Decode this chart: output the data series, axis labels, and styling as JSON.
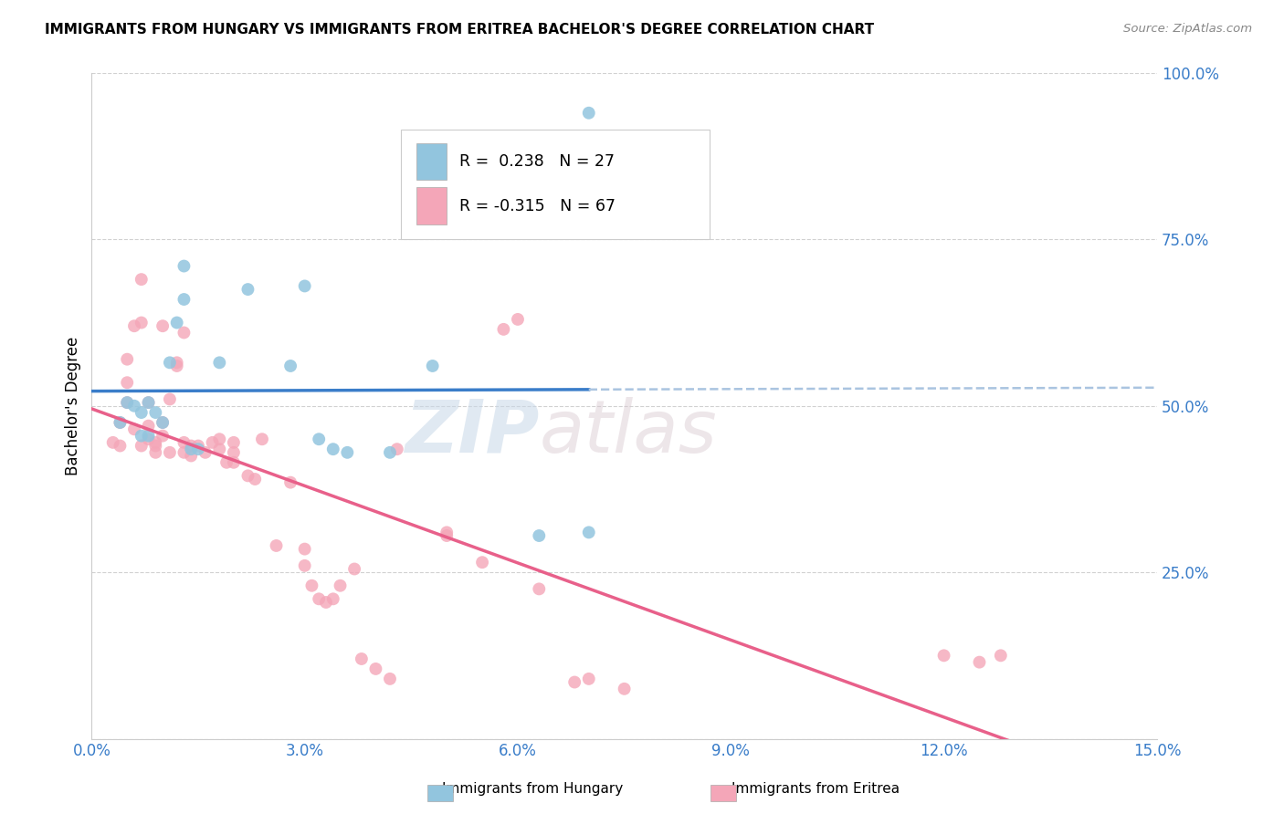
{
  "title": "IMMIGRANTS FROM HUNGARY VS IMMIGRANTS FROM ERITREA BACHELOR'S DEGREE CORRELATION CHART",
  "source": "Source: ZipAtlas.com",
  "ylabel": "Bachelor's Degree",
  "xlim": [
    0.0,
    0.15
  ],
  "ylim": [
    0.0,
    1.0
  ],
  "xticks": [
    0.0,
    0.03,
    0.06,
    0.09,
    0.12,
    0.15
  ],
  "xtick_labels": [
    "0.0%",
    "3.0%",
    "6.0%",
    "9.0%",
    "12.0%",
    "15.0%"
  ],
  "yticks": [
    0.0,
    0.25,
    0.5,
    0.75,
    1.0
  ],
  "ytick_labels": [
    "",
    "25.0%",
    "50.0%",
    "75.0%",
    "100.0%"
  ],
  "hungary_R": 0.238,
  "hungary_N": 27,
  "eritrea_R": -0.315,
  "eritrea_N": 67,
  "hungary_color": "#92c5de",
  "eritrea_color": "#f4a6b8",
  "hungary_line_color": "#3a7dc9",
  "eritrea_line_color": "#e8608a",
  "dashed_line_color": "#aac4e0",
  "watermark_zip": "ZIP",
  "watermark_atlas": "atlas",
  "legend_hungary": "Immigrants from Hungary",
  "legend_eritrea": "Immigrants from Eritrea",
  "hungary_scatter_x": [
    0.004,
    0.005,
    0.006,
    0.007,
    0.007,
    0.008,
    0.008,
    0.009,
    0.01,
    0.011,
    0.012,
    0.013,
    0.013,
    0.014,
    0.015,
    0.018,
    0.022,
    0.028,
    0.03,
    0.032,
    0.034,
    0.036,
    0.042,
    0.048,
    0.063,
    0.07,
    0.07
  ],
  "hungary_scatter_y": [
    0.475,
    0.505,
    0.5,
    0.49,
    0.455,
    0.505,
    0.455,
    0.49,
    0.475,
    0.565,
    0.625,
    0.71,
    0.66,
    0.435,
    0.435,
    0.565,
    0.675,
    0.56,
    0.68,
    0.45,
    0.435,
    0.43,
    0.43,
    0.56,
    0.305,
    0.31,
    0.94
  ],
  "eritrea_scatter_x": [
    0.003,
    0.004,
    0.004,
    0.005,
    0.005,
    0.005,
    0.006,
    0.006,
    0.007,
    0.007,
    0.007,
    0.008,
    0.008,
    0.008,
    0.009,
    0.009,
    0.009,
    0.01,
    0.01,
    0.01,
    0.011,
    0.011,
    0.012,
    0.012,
    0.013,
    0.013,
    0.013,
    0.014,
    0.014,
    0.015,
    0.016,
    0.017,
    0.018,
    0.018,
    0.019,
    0.02,
    0.02,
    0.02,
    0.022,
    0.023,
    0.024,
    0.026,
    0.028,
    0.03,
    0.03,
    0.031,
    0.032,
    0.033,
    0.034,
    0.035,
    0.037,
    0.038,
    0.04,
    0.042,
    0.043,
    0.05,
    0.05,
    0.055,
    0.058,
    0.06,
    0.063,
    0.068,
    0.07,
    0.075,
    0.12,
    0.125,
    0.128
  ],
  "eritrea_scatter_y": [
    0.445,
    0.44,
    0.475,
    0.535,
    0.505,
    0.57,
    0.465,
    0.62,
    0.625,
    0.69,
    0.44,
    0.47,
    0.505,
    0.45,
    0.44,
    0.43,
    0.445,
    0.455,
    0.475,
    0.62,
    0.43,
    0.51,
    0.56,
    0.565,
    0.43,
    0.445,
    0.61,
    0.44,
    0.425,
    0.44,
    0.43,
    0.445,
    0.435,
    0.45,
    0.415,
    0.445,
    0.43,
    0.415,
    0.395,
    0.39,
    0.45,
    0.29,
    0.385,
    0.285,
    0.26,
    0.23,
    0.21,
    0.205,
    0.21,
    0.23,
    0.255,
    0.12,
    0.105,
    0.09,
    0.435,
    0.305,
    0.31,
    0.265,
    0.615,
    0.63,
    0.225,
    0.085,
    0.09,
    0.075,
    0.125,
    0.115,
    0.125
  ]
}
